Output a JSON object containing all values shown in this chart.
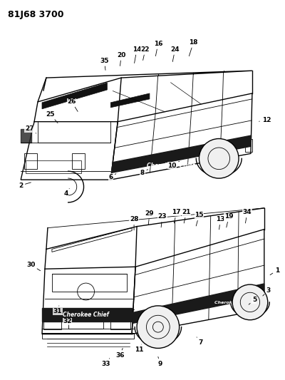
{
  "title": "81J68 3700",
  "bg_color": "#ffffff",
  "line_color": "#000000",
  "fig_width": 4.0,
  "fig_height": 5.33,
  "dpi": 100,
  "top_labels": [
    [
      "2",
      28,
      258
    ],
    [
      "4",
      95,
      267
    ],
    [
      "6",
      158,
      244
    ],
    [
      "8",
      200,
      238
    ],
    [
      "10",
      244,
      228
    ],
    [
      "12",
      372,
      168
    ],
    [
      "14",
      193,
      68
    ],
    [
      "16",
      222,
      60
    ],
    [
      "18",
      275,
      58
    ],
    [
      "20",
      172,
      76
    ],
    [
      "22",
      205,
      68
    ],
    [
      "24",
      248,
      68
    ],
    [
      "25",
      72,
      162
    ],
    [
      "26",
      102,
      142
    ],
    [
      "27",
      42,
      180
    ],
    [
      "35",
      148,
      84
    ]
  ],
  "bot_labels": [
    [
      "1",
      390,
      382
    ],
    [
      "3",
      378,
      408
    ],
    [
      "5",
      358,
      420
    ],
    [
      "7",
      284,
      480
    ],
    [
      "9",
      225,
      510
    ],
    [
      "11",
      196,
      490
    ],
    [
      "13",
      310,
      308
    ],
    [
      "15",
      280,
      302
    ],
    [
      "17",
      248,
      298
    ],
    [
      "19",
      322,
      304
    ],
    [
      "21",
      264,
      298
    ],
    [
      "23",
      228,
      304
    ],
    [
      "28",
      188,
      308
    ],
    [
      "29",
      210,
      300
    ],
    [
      "30",
      42,
      372
    ],
    [
      "31",
      82,
      436
    ],
    [
      "32",
      94,
      450
    ],
    [
      "33",
      148,
      510
    ],
    [
      "34",
      348,
      298
    ],
    [
      "36",
      168,
      498
    ]
  ]
}
